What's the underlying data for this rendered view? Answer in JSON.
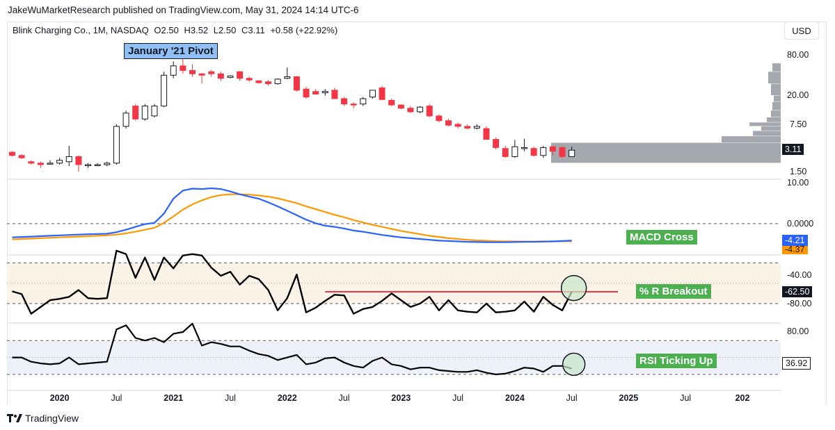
{
  "header": {
    "publisher_line": "JakeWuMarketResearch published on TradingView.com, May 31, 2024 14:14 UTC-6",
    "symbol_legend": {
      "name": "Blink Charging Co., 1M, NASDAQ",
      "open": "O2.50",
      "high": "H3.52",
      "low": "L2.50",
      "close": "C3.11",
      "change": "+0.58 (+22.92%)"
    },
    "currency_button": "USD"
  },
  "footer": {
    "brand": "TradingView"
  },
  "annotations": {
    "pivot": "January '21 Pivot",
    "macd_cross": "MACD Cross",
    "wr_breakout": "% R Breakout",
    "rsi_up": "RSI Ticking Up"
  },
  "colors": {
    "up_candle": "#ffffff",
    "down_candle": "#f23645",
    "macd_line": "#2962ff",
    "signal_line": "#ff9800",
    "annotation_green": "#4caf50",
    "pivot_blue": "#90bff5",
    "breakout_line": "#f23645"
  },
  "chart_data": [
    {
      "type": "candlestick",
      "title": "",
      "scale": "log",
      "y_ticks": [
        "80.00",
        "20.00",
        "7.50",
        "1.50"
      ],
      "y_tick_values": [
        80,
        20,
        7.5,
        1.5
      ],
      "last_price_label": "3.11",
      "x_ticks": [
        "2020",
        "Jul",
        "2021",
        "Jul",
        "2022",
        "Jul",
        "2023",
        "Jul",
        "2024",
        "Jul",
        "2025",
        "Jul",
        "202"
      ],
      "x_tick_dates": [
        "2020-01",
        "2020-07",
        "2021-01",
        "2021-07",
        "2022-01",
        "2022-07",
        "2023-01",
        "2023-07",
        "2024-01",
        "2024-07",
        "2025-01",
        "2025-07",
        "2026-01"
      ],
      "start_month": "2019-08",
      "candles": [
        {
          "o": 2.9,
          "h": 3.0,
          "l": 2.5,
          "c": 2.6
        },
        {
          "o": 2.6,
          "h": 2.7,
          "l": 2.3,
          "c": 2.4
        },
        {
          "o": 2.1,
          "h": 2.2,
          "l": 1.9,
          "c": 2.0
        },
        {
          "o": 2.0,
          "h": 2.1,
          "l": 1.7,
          "c": 1.9
        },
        {
          "o": 2.0,
          "h": 2.2,
          "l": 1.9,
          "c": 2.0
        },
        {
          "o": 2.0,
          "h": 2.4,
          "l": 1.9,
          "c": 2.2
        },
        {
          "o": 2.1,
          "h": 3.6,
          "l": 1.8,
          "c": 2.5
        },
        {
          "o": 2.5,
          "h": 2.6,
          "l": 1.5,
          "c": 1.9
        },
        {
          "o": 1.9,
          "h": 2.0,
          "l": 1.7,
          "c": 1.9
        },
        {
          "o": 1.9,
          "h": 2.0,
          "l": 1.8,
          "c": 1.9
        },
        {
          "o": 1.9,
          "h": 2.1,
          "l": 1.8,
          "c": 2.0
        },
        {
          "o": 2.0,
          "h": 7.5,
          "l": 1.9,
          "c": 7.0
        },
        {
          "o": 7.0,
          "h": 12.0,
          "l": 6.5,
          "c": 11.0
        },
        {
          "o": 14.0,
          "h": 15.0,
          "l": 8.5,
          "c": 9.0
        },
        {
          "o": 9.0,
          "h": 15.0,
          "l": 8.5,
          "c": 14.0
        },
        {
          "o": 10.0,
          "h": 15.0,
          "l": 9.5,
          "c": 14.0
        },
        {
          "o": 14.0,
          "h": 45.0,
          "l": 13.5,
          "c": 40.0
        },
        {
          "o": 40.0,
          "h": 64.0,
          "l": 36.0,
          "c": 55.0
        },
        {
          "o": 55.0,
          "h": 70.0,
          "l": 42.0,
          "c": 47.0
        },
        {
          "o": 47.0,
          "h": 58.0,
          "l": 38.0,
          "c": 42.0
        },
        {
          "o": 42.0,
          "h": 43.0,
          "l": 30.0,
          "c": 40.0
        },
        {
          "o": 45.0,
          "h": 48.0,
          "l": 38.0,
          "c": 42.0
        },
        {
          "o": 42.0,
          "h": 45.0,
          "l": 33.0,
          "c": 36.0
        },
        {
          "o": 37.0,
          "h": 40.0,
          "l": 36.0,
          "c": 39.0
        },
        {
          "o": 45.0,
          "h": 46.0,
          "l": 33.0,
          "c": 36.0
        },
        {
          "o": 36.0,
          "h": 38.0,
          "l": 32.0,
          "c": 34.0
        },
        {
          "o": 33.0,
          "h": 34.0,
          "l": 30.0,
          "c": 31.0
        },
        {
          "o": 32.0,
          "h": 34.0,
          "l": 28.0,
          "c": 30.0
        },
        {
          "o": 30.0,
          "h": 36.0,
          "l": 29.0,
          "c": 35.0
        },
        {
          "o": 36.0,
          "h": 52.0,
          "l": 35.0,
          "c": 38.0
        },
        {
          "o": 38.0,
          "h": 39.0,
          "l": 23.0,
          "c": 24.0
        },
        {
          "o": 25.0,
          "h": 27.0,
          "l": 18.0,
          "c": 19.0
        },
        {
          "o": 23.0,
          "h": 25.0,
          "l": 21.0,
          "c": 21.0
        },
        {
          "o": 22.0,
          "h": 25.0,
          "l": 20.0,
          "c": 23.0
        },
        {
          "o": 24.0,
          "h": 26.0,
          "l": 18.0,
          "c": 18.0
        },
        {
          "o": 18.0,
          "h": 19.0,
          "l": 14.0,
          "c": 15.0
        },
        {
          "o": 15.0,
          "h": 16.0,
          "l": 13.0,
          "c": 14.5
        },
        {
          "o": 15.0,
          "h": 19.0,
          "l": 14.0,
          "c": 18.0
        },
        {
          "o": 19.0,
          "h": 24.0,
          "l": 18.0,
          "c": 24.0
        },
        {
          "o": 26.0,
          "h": 28.0,
          "l": 17.0,
          "c": 17.5
        },
        {
          "o": 17.0,
          "h": 18.0,
          "l": 14.0,
          "c": 14.5
        },
        {
          "o": 14.5,
          "h": 15.0,
          "l": 12.5,
          "c": 13.0
        },
        {
          "o": 13.0,
          "h": 14.0,
          "l": 11.0,
          "c": 11.5
        },
        {
          "o": 11.5,
          "h": 14.0,
          "l": 11.0,
          "c": 13.5
        },
        {
          "o": 14.0,
          "h": 15.0,
          "l": 9.5,
          "c": 10.0
        },
        {
          "o": 10.0,
          "h": 10.5,
          "l": 8.0,
          "c": 8.5
        },
        {
          "o": 8.5,
          "h": 9.0,
          "l": 7.0,
          "c": 7.3
        },
        {
          "o": 7.5,
          "h": 8.0,
          "l": 6.5,
          "c": 7.0
        },
        {
          "o": 7.0,
          "h": 7.5,
          "l": 6.3,
          "c": 6.6
        },
        {
          "o": 6.6,
          "h": 7.5,
          "l": 6.3,
          "c": 7.0
        },
        {
          "o": 6.5,
          "h": 7.0,
          "l": 4.5,
          "c": 4.5
        },
        {
          "o": 4.5,
          "h": 4.8,
          "l": 3.2,
          "c": 3.4
        },
        {
          "o": 3.3,
          "h": 3.6,
          "l": 2.4,
          "c": 2.5
        },
        {
          "o": 2.5,
          "h": 4.4,
          "l": 2.4,
          "c": 3.5
        },
        {
          "o": 3.3,
          "h": 4.6,
          "l": 3.0,
          "c": 3.4
        },
        {
          "o": 3.3,
          "h": 3.5,
          "l": 2.5,
          "c": 2.6
        },
        {
          "o": 2.6,
          "h": 3.6,
          "l": 2.4,
          "c": 3.4
        },
        {
          "o": 3.5,
          "h": 3.6,
          "l": 2.6,
          "c": 3.0
        },
        {
          "o": 3.4,
          "h": 3.6,
          "l": 2.4,
          "c": 2.5
        },
        {
          "o": 2.5,
          "h": 3.52,
          "l": 2.5,
          "c": 3.11
        }
      ]
    },
    {
      "type": "line",
      "title": "",
      "y_ticks": [
        "10.00",
        "0.0000"
      ],
      "y_tick_values": [
        10,
        0
      ],
      "zero_line": true,
      "value_labels": [
        "-4.21",
        "-4.37"
      ],
      "series": [
        {
          "role": "macd",
          "color": "#2962ff",
          "values": [
            -3.4,
            -3.3,
            -3.2,
            -3.1,
            -3.0,
            -2.9,
            -2.8,
            -2.7,
            -2.6,
            -2.55,
            -2.5,
            -2.1,
            -1.5,
            -0.8,
            -0.1,
            0.2,
            2.5,
            6.2,
            8.2,
            8.7,
            8.6,
            8.8,
            8.6,
            8.0,
            7.3,
            6.7,
            6.2,
            5.3,
            4.3,
            3.2,
            2.1,
            1.0,
            0.1,
            -0.5,
            -0.8,
            -1.2,
            -1.7,
            -2.0,
            -2.4,
            -2.8,
            -3.1,
            -3.4,
            -3.6,
            -3.8,
            -4.0,
            -4.2,
            -4.3,
            -4.4,
            -4.5,
            -4.55,
            -4.6,
            -4.6,
            -4.6,
            -4.55,
            -4.5,
            -4.5,
            -4.45,
            -4.4,
            -4.3,
            -4.21
          ]
        },
        {
          "role": "signal",
          "color": "#ff9800",
          "values": [
            -3.9,
            -3.8,
            -3.7,
            -3.6,
            -3.5,
            -3.4,
            -3.3,
            -3.2,
            -3.1,
            -3.0,
            -2.9,
            -2.7,
            -2.4,
            -2.0,
            -1.5,
            -1.0,
            0.2,
            1.8,
            3.5,
            4.8,
            5.8,
            6.6,
            7.1,
            7.3,
            7.3,
            7.2,
            7.0,
            6.7,
            6.3,
            5.7,
            5.1,
            4.3,
            3.6,
            2.9,
            2.2,
            1.6,
            0.9,
            0.3,
            -0.3,
            -0.8,
            -1.3,
            -1.8,
            -2.2,
            -2.6,
            -3.0,
            -3.3,
            -3.6,
            -3.8,
            -4.0,
            -4.15,
            -4.25,
            -4.35,
            -4.4,
            -4.42,
            -4.42,
            -4.42,
            -4.4,
            -4.4,
            -4.38,
            -4.37
          ]
        }
      ]
    },
    {
      "type": "line",
      "title": "",
      "y_ticks": [
        "-40.00",
        "-80.00"
      ],
      "y_tick_values": [
        -40,
        -80
      ],
      "band": [
        -80,
        -20
      ],
      "value_labels": [
        "-62.50"
      ],
      "breakout_level": -62.5,
      "series": [
        {
          "role": "williams_r",
          "color": "#000000",
          "values": [
            -62,
            -66,
            -95,
            -85,
            -75,
            -73,
            -70,
            -60,
            -72,
            -73,
            -72,
            -2,
            -7,
            -42,
            -12,
            -45,
            -12,
            -28,
            -9,
            -7,
            -9,
            -27,
            -39,
            -33,
            -52,
            -39,
            -44,
            -60,
            -90,
            -72,
            -37,
            -93,
            -86,
            -76,
            -67,
            -68,
            -95,
            -88,
            -85,
            -76,
            -65,
            -75,
            -85,
            -80,
            -70,
            -90,
            -75,
            -90,
            -92,
            -93,
            -80,
            -93,
            -92,
            -90,
            -77,
            -92,
            -70,
            -82,
            -90,
            -62.5
          ]
        }
      ]
    },
    {
      "type": "line",
      "title": "",
      "y_ticks": [
        "80.00"
      ],
      "y_tick_values": [
        80
      ],
      "band": [
        30,
        70
      ],
      "value_labels": [
        "36.92"
      ],
      "series": [
        {
          "role": "rsi",
          "color": "#000000",
          "values": [
            50,
            50,
            45,
            43,
            42,
            43,
            50,
            42,
            43,
            44,
            45,
            83,
            88,
            73,
            70,
            73,
            68,
            78,
            80,
            90,
            64,
            68,
            66,
            63,
            63,
            58,
            54,
            52,
            47,
            50,
            53,
            42,
            44,
            49,
            50,
            44,
            40,
            38,
            46,
            50,
            42,
            40,
            36,
            38,
            38,
            35,
            34,
            33,
            33,
            35,
            32,
            30,
            31,
            34,
            38,
            37,
            33,
            40,
            40,
            36.92
          ]
        }
      ]
    }
  ]
}
